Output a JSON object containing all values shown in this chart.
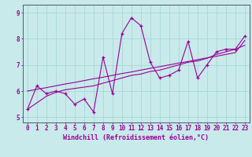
{
  "title": "",
  "xlabel": "Windchill (Refroidissement éolien,°C)",
  "ylabel": "",
  "bg_color": "#c8eaea",
  "line_color": "#990099",
  "grid_color": "#aad8d8",
  "axis_color": "#555577",
  "spine_color": "#555577",
  "xlim": [
    -0.5,
    23.5
  ],
  "ylim": [
    4.8,
    9.3
  ],
  "xticks": [
    0,
    1,
    2,
    3,
    4,
    5,
    6,
    7,
    8,
    9,
    10,
    11,
    12,
    13,
    14,
    15,
    16,
    17,
    18,
    19,
    20,
    21,
    22,
    23
  ],
  "yticks": [
    5,
    6,
    7,
    8,
    9
  ],
  "hours": [
    0,
    1,
    2,
    3,
    4,
    5,
    6,
    7,
    8,
    9,
    10,
    11,
    12,
    13,
    14,
    15,
    16,
    17,
    18,
    19,
    20,
    21,
    22,
    23
  ],
  "temp": [
    5.3,
    6.2,
    5.9,
    6.0,
    5.9,
    5.5,
    5.7,
    5.2,
    7.3,
    5.9,
    8.2,
    8.8,
    8.5,
    7.1,
    6.5,
    6.6,
    6.8,
    7.9,
    6.5,
    7.0,
    7.5,
    7.6,
    7.6,
    8.1
  ],
  "trend1": [
    5.3,
    5.55,
    5.8,
    5.95,
    6.05,
    6.1,
    6.15,
    6.2,
    6.3,
    6.4,
    6.5,
    6.6,
    6.65,
    6.75,
    6.8,
    6.9,
    7.0,
    7.1,
    7.15,
    7.25,
    7.4,
    7.5,
    7.6,
    7.75
  ],
  "trend2": [
    6.0,
    6.07,
    6.13,
    6.2,
    6.27,
    6.33,
    6.4,
    6.47,
    6.53,
    6.6,
    6.67,
    6.73,
    6.8,
    6.87,
    6.93,
    7.0,
    7.07,
    7.13,
    7.2,
    7.27,
    7.33,
    7.4,
    7.47,
    7.93
  ],
  "tick_fontsize": 5.5,
  "xlabel_fontsize": 6.0
}
